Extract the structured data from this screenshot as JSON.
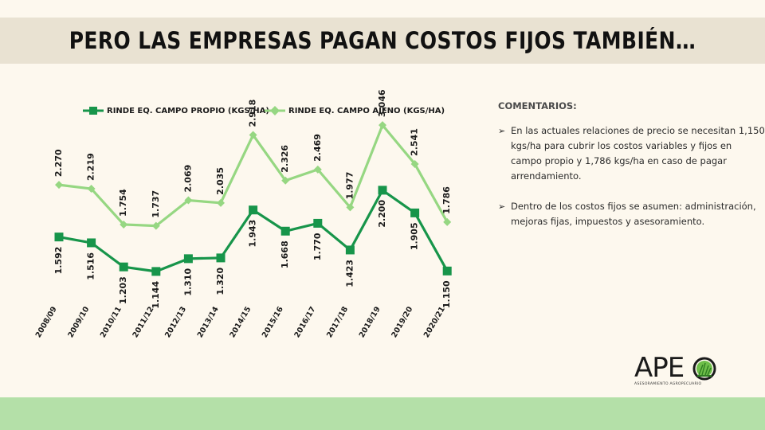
{
  "title": "PERO LAS EMPRESAS PAGAN COSTOS FIJOS TAMBIÉN…",
  "colors": {
    "own": "#17954a",
    "rented": "#96d782",
    "title_band": "#e9e2d2",
    "bottom_band": "#b4e0a8"
  },
  "chart_data": {
    "type": "line",
    "categories": [
      "2008/09",
      "2009/10",
      "2010/11",
      "2011/12",
      "2012/13",
      "2013/14",
      "2014/15",
      "2015/16",
      "2016/17",
      "2017/18",
      "2018/19",
      "2019/20",
      "2020/21"
    ],
    "series": [
      {
        "name": "RINDE EQ. CAMPO PROPIO (KGS/HA)",
        "marker": "square",
        "values": [
          1592,
          1516,
          1203,
          1144,
          1310,
          1320,
          1943,
          1668,
          1770,
          1423,
          2200,
          1905,
          1150
        ],
        "labels": [
          "1.592",
          "1.516",
          "1.203",
          "1.144",
          "1.310",
          "1.320",
          "1.943",
          "1.668",
          "1.770",
          "1.423",
          "2.200",
          "1.905",
          "1.150"
        ]
      },
      {
        "name": "RINDE EQ. CAMPO AJENO (KGS/HA)",
        "marker": "diamond",
        "values": [
          2270,
          2219,
          1754,
          1737,
          2069,
          2035,
          2918,
          2326,
          2469,
          1977,
          3046,
          2541,
          1786
        ],
        "labels": [
          "2.270",
          "2.219",
          "1.754",
          "1.737",
          "2.069",
          "2.035",
          "2.918",
          "2.326",
          "2.469",
          "1.977",
          "3.046",
          "2.541",
          "1.786"
        ]
      }
    ],
    "ylim": [
      1000,
      3300
    ],
    "legend": "top",
    "grid": false
  },
  "comments": {
    "heading": "COMENTARIOS:",
    "bullet_icon": "arrow-bullet-icon",
    "items": [
      "En las actuales relaciones de precio se necesitan 1,150  kgs/ha para cubrir los costos variables y fijos en campo propio y 1,786  kgs/ha en caso de pagar arrendamiento.",
      "Dentro de los costos fijos se asumen: administración, mejoras fijas, impuestos y asesoramiento."
    ]
  },
  "logo": {
    "text": "APE",
    "subtitle": "ASESORAMIENTO AGROPECUARIO",
    "icon": "grass-ring-icon"
  }
}
